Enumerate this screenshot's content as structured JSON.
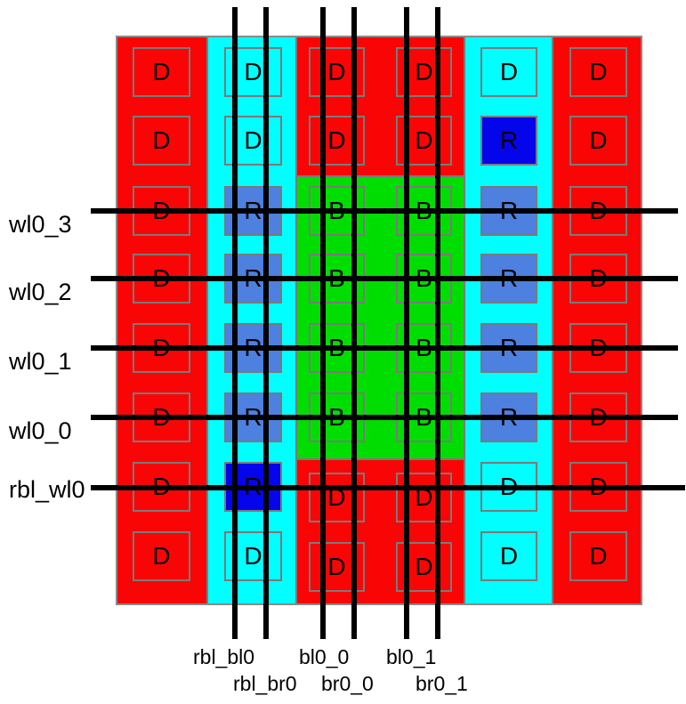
{
  "palette": {
    "red": "#fa0505",
    "cyan": "#00ffff",
    "green": "#00dd00",
    "blue_dark": "#0505ec",
    "blue_medium": "#4d80df",
    "outline_gray": "#7a7a7a",
    "wire_black": "#000000",
    "text_black": "#000000",
    "background": "#ffffff"
  },
  "regions": [
    {
      "name": "left-dummy-column",
      "fill": "red"
    },
    {
      "name": "left-replica-column",
      "fill": "cyan"
    },
    {
      "name": "center-top-dummy-strip",
      "fill": "red"
    },
    {
      "name": "bitcell-core",
      "fill": "green"
    },
    {
      "name": "center-bottom-dummy-strip",
      "fill": "red"
    },
    {
      "name": "right-replica-column",
      "fill": "cyan"
    },
    {
      "name": "right-dummy-column",
      "fill": "red"
    }
  ],
  "array": {
    "rows": [
      [
        "D",
        "D",
        "D",
        "D",
        "D",
        "D"
      ],
      [
        "D",
        "D",
        "D",
        "D",
        "R:dark",
        "D"
      ],
      [
        "D",
        "R:med",
        "B",
        "B",
        "R:med",
        "D"
      ],
      [
        "D",
        "R:med",
        "B",
        "B",
        "R:med",
        "D"
      ],
      [
        "D",
        "R:med",
        "B",
        "B",
        "R:med",
        "D"
      ],
      [
        "D",
        "R:med",
        "B",
        "B",
        "R:med",
        "D"
      ],
      [
        "D",
        "R:dark",
        "D",
        "D",
        "D",
        "D"
      ],
      [
        "D",
        "D",
        "D",
        "D",
        "D",
        "D"
      ]
    ]
  },
  "wordlines": [
    {
      "label": "wl0_3"
    },
    {
      "label": "wl0_2"
    },
    {
      "label": "wl0_1"
    },
    {
      "label": "wl0_0"
    },
    {
      "label": "rbl_wl0"
    }
  ],
  "bitlines": [
    {
      "label": "rbl_bl0"
    },
    {
      "label": "rbl_br0"
    },
    {
      "label": "bl0_0"
    },
    {
      "label": "br0_0"
    },
    {
      "label": "bl0_1"
    },
    {
      "label": "br0_1"
    }
  ]
}
